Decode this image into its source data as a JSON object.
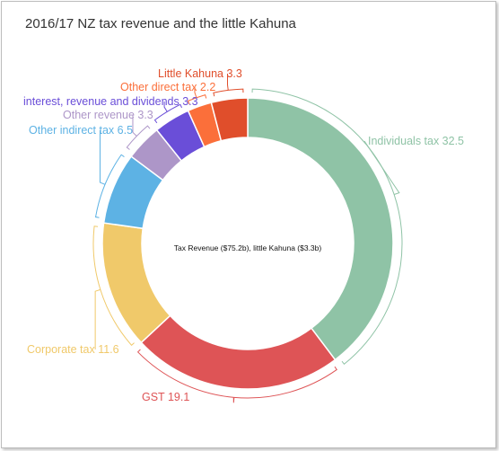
{
  "chart_data": {
    "type": "pie",
    "subtype": "donut",
    "title": "2016/17 NZ tax revenue and the little Kahuna",
    "center_label": "Tax Revenue ($75.2b), little Kahuna ($3.3b)",
    "slices": [
      {
        "label": "Individuals tax",
        "value": 32.5,
        "color": "#8fc3a6",
        "text": "Individuals tax 32.5"
      },
      {
        "label": "GST",
        "value": 19.1,
        "color": "#de5456",
        "text": "GST 19.1"
      },
      {
        "label": "Corporate tax",
        "value": 11.6,
        "color": "#f0c96a",
        "text": "Corporate tax 11.6"
      },
      {
        "label": "Other indirect tax",
        "value": 6.5,
        "color": "#5db2e4",
        "text": "Other indirect tax 6.5"
      },
      {
        "label": "Other revenue",
        "value": 3.3,
        "color": "#ad96c8",
        "text": "Other revenue 3.3"
      },
      {
        "label": "interest, revenue and dividends",
        "value": 3.3,
        "color": "#6a4ed8",
        "text": "interest, revenue and dividends 3.3"
      },
      {
        "label": "Other direct tax",
        "value": 2.2,
        "color": "#fb6f3a",
        "text": "Other direct tax 2.2"
      },
      {
        "label": "Little Kahuna",
        "value": 3.3,
        "color": "#e04e2b",
        "text": "Little Kahuna 3.3"
      }
    ]
  }
}
